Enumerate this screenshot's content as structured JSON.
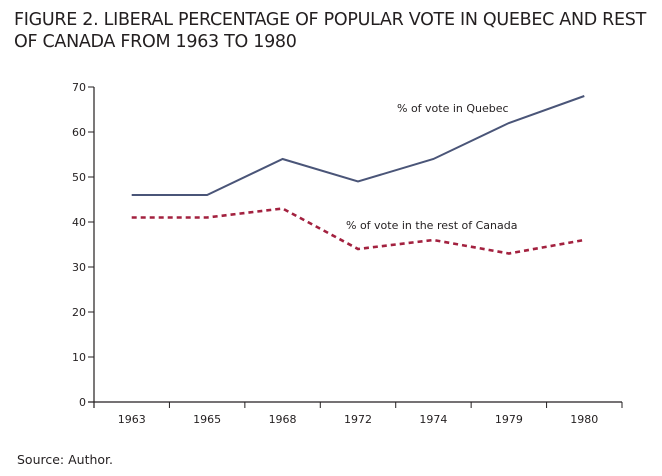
{
  "figure": {
    "title": "FIGURE 2. LIBERAL PERCENTAGE OF POPULAR VOTE IN QUEBEC AND REST OF CANADA FROM 1963 TO 1980",
    "source": "Source: Author."
  },
  "chart_data": {
    "type": "line",
    "title": "FIGURE 2. LIBERAL PERCENTAGE OF POPULAR VOTE IN QUEBEC AND REST OF CANADA FROM 1963 TO 1980",
    "xlabel": "",
    "ylabel": "",
    "categories": [
      "1963",
      "1965",
      "1968",
      "1972",
      "1974",
      "1979",
      "1980"
    ],
    "ylim": [
      0,
      70
    ],
    "yticks": [
      0,
      10,
      20,
      30,
      40,
      50,
      60,
      70
    ],
    "grid": false,
    "legend": "inline annotations",
    "series": [
      {
        "name": "% of vote in Quebec",
        "values": [
          46,
          46,
          54,
          49,
          54,
          62,
          68
        ],
        "color": "#4a5578",
        "style": "solid"
      },
      {
        "name": "% of vote in the rest of Canada",
        "values": [
          41,
          41,
          43,
          34,
          36,
          33,
          36
        ],
        "color": "#a3213f",
        "style": "dashed"
      }
    ],
    "annotations": [
      {
        "text": "% of vote in Quebec",
        "series": 0
      },
      {
        "text": "% of vote in the rest of Canada",
        "series": 1
      }
    ],
    "source": "Source: Author."
  }
}
